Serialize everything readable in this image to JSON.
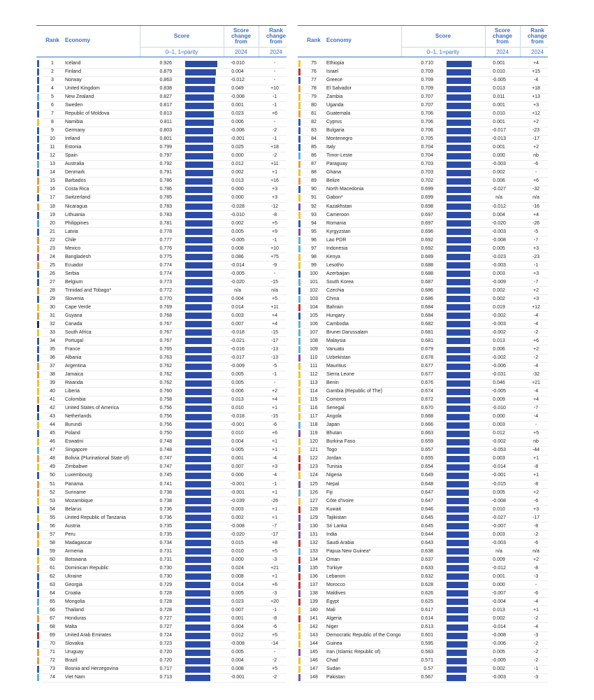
{
  "headers": {
    "rank": "Rank",
    "economy": "Economy",
    "score": "Score",
    "score_sub": "0–1, 1=parity",
    "score_change": [
      "Score",
      "change",
      "from"
    ],
    "rank_change": [
      "Rank",
      "change",
      "from"
    ],
    "year": "2024"
  },
  "bar_color": "#2c4ca8",
  "rows": [
    [
      1,
      "Iceland",
      0.926,
      "-0.010",
      "-",
      "#2f5bb7"
    ],
    [
      2,
      "Finland",
      0.879,
      "0.004",
      "-",
      "#2f5bb7"
    ],
    [
      3,
      "Norway",
      0.863,
      "-0.012",
      "-",
      "#2f5bb7"
    ],
    [
      4,
      "United Kingdom",
      0.838,
      "0.049",
      "+10",
      "#2f5bb7"
    ],
    [
      5,
      "New Zealand",
      0.827,
      "-0.008",
      "-1",
      "#5ab0e0"
    ],
    [
      6,
      "Sweden",
      0.817,
      "0.001",
      "-1",
      "#2f5bb7"
    ],
    [
      7,
      "Republic of Moldova",
      0.813,
      "0.023",
      "+6",
      "#2f5bb7"
    ],
    [
      8,
      "Namibia",
      0.811,
      "0.006",
      "-",
      "#f2c12e"
    ],
    [
      9,
      "Germany",
      0.803,
      "-0.006",
      "-2",
      "#2f5bb7"
    ],
    [
      10,
      "Ireland",
      0.801,
      "-0.001",
      "-1",
      "#2f5bb7"
    ],
    [
      11,
      "Estonia",
      0.799,
      "0.025",
      "+18",
      "#2f5bb7"
    ],
    [
      12,
      "Spain",
      0.797,
      "0.000",
      "-2",
      "#2f5bb7"
    ],
    [
      13,
      "Australia",
      0.792,
      "0.012",
      "+11",
      "#5ab0e0"
    ],
    [
      14,
      "Denmark",
      0.791,
      "0.002",
      "+1",
      "#2f5bb7"
    ],
    [
      15,
      "Barbados",
      0.786,
      "0.013",
      "+16",
      "#f09a3e"
    ],
    [
      16,
      "Costa Rica",
      0.786,
      "0.000",
      "+3",
      "#f09a3e"
    ],
    [
      17,
      "Switzerland",
      0.785,
      "0.000",
      "+3",
      "#2f5bb7"
    ],
    [
      18,
      "Nicaragua",
      0.783,
      "-0.028",
      "-12",
      "#f09a3e"
    ],
    [
      19,
      "Lithuania",
      0.783,
      "-0.010",
      "-8",
      "#2f5bb7"
    ],
    [
      20,
      "Philippines",
      0.781,
      "0.002",
      "+5",
      "#5ab0e0"
    ],
    [
      21,
      "Latvia",
      0.778,
      "0.005",
      "+9",
      "#2f5bb7"
    ],
    [
      22,
      "Chile",
      0.777,
      "-0.005",
      "-1",
      "#f09a3e"
    ],
    [
      23,
      "Mexico",
      0.776,
      "0.008",
      "+10",
      "#f09a3e"
    ],
    [
      24,
      "Bangladesh",
      0.775,
      "0.086",
      "+75",
      "#8050a8"
    ],
    [
      25,
      "Ecuador",
      0.774,
      "-0.014",
      "-9",
      "#f09a3e"
    ],
    [
      26,
      "Serbia",
      0.774,
      "-0.005",
      "-",
      "#2f5bb7"
    ],
    [
      27,
      "Belgium",
      0.773,
      "-0.020",
      "-15",
      "#2f5bb7"
    ],
    [
      28,
      "Trinidad and Tobago*",
      0.772,
      "n/a",
      "n/a",
      "#f09a3e"
    ],
    [
      29,
      "Slovenia",
      {
        "value": 0.77,
        "label": "0.770"
      },
      "0.004",
      "+5",
      "#2f5bb7"
    ],
    [
      30,
      "Cape Verde",
      0.769,
      "0.014",
      "+11",
      "#f2c12e"
    ],
    [
      31,
      "Guyana",
      0.768,
      "0.003",
      "+4",
      "#f09a3e"
    ],
    [
      32,
      "Canada",
      0.767,
      "0.007",
      "+4",
      "#1b2f6b"
    ],
    [
      33,
      "South Africa",
      0.767,
      "-0.018",
      "-15",
      "#f2c12e"
    ],
    [
      34,
      "Portugal",
      0.767,
      "-0.021",
      "-17",
      "#2f5bb7"
    ],
    [
      35,
      "France",
      0.765,
      "-0.016",
      "-13",
      "#2f5bb7"
    ],
    [
      36,
      "Albania",
      0.763,
      "-0.017",
      "-13",
      "#2f5bb7"
    ],
    [
      37,
      "Argentina",
      0.762,
      "-0.009",
      "-5",
      "#f09a3e"
    ],
    [
      38,
      "Jamaica",
      0.762,
      "0.005",
      "-1",
      "#f09a3e"
    ],
    [
      39,
      "Rwanda",
      0.762,
      "0.005",
      "-",
      "#f2c12e"
    ],
    [
      40,
      "Liberia",
      {
        "value": 0.76,
        "label": "0.760"
      },
      "0.006",
      "+2",
      "#f2c12e"
    ],
    [
      41,
      "Colombia",
      0.758,
      "0.013",
      "+4",
      "#f09a3e"
    ],
    [
      42,
      "United States of America",
      0.756,
      "0.010",
      "+1",
      "#1b2f6b"
    ],
    [
      43,
      "Netherlands",
      0.756,
      "-0.018",
      "-15",
      "#2f5bb7"
    ],
    [
      44,
      "Burundi",
      0.756,
      "-0.001",
      "-6",
      "#f2c12e"
    ],
    [
      45,
      "Poland",
      {
        "value": 0.75,
        "label": "0.750"
      },
      "0.010",
      "+6",
      "#2f5bb7"
    ],
    [
      46,
      "Eswatini",
      0.748,
      "0.004",
      "+1",
      "#f2c12e"
    ],
    [
      47,
      "Singapore",
      0.748,
      "0.005",
      "+1",
      "#5ab0e0"
    ],
    [
      48,
      "Bolivia (Plurinational State of)",
      0.747,
      "0.001",
      "-4",
      "#f09a3e"
    ],
    [
      49,
      "Zimbabwe",
      0.747,
      "0.007",
      "+3",
      "#f2c12e"
    ],
    [
      50,
      "Luxembourg",
      0.745,
      "0.000",
      "-4",
      "#2f5bb7"
    ],
    [
      51,
      "Panama",
      0.741,
      "-0.001",
      "-1",
      "#f09a3e"
    ],
    [
      52,
      "Suriname",
      0.738,
      "-0.001",
      "+1",
      "#f09a3e"
    ],
    [
      53,
      "Mozambique",
      0.738,
      "-0.039",
      "-26",
      "#f2c12e"
    ],
    [
      54,
      "Belarus",
      0.736,
      "0.003",
      "+1",
      "#2f5bb7"
    ],
    [
      55,
      "United Republic of Tanzania",
      0.736,
      "0.002",
      "+1",
      "#f2c12e"
    ],
    [
      56,
      "Austria",
      0.735,
      "-0.008",
      "-7",
      "#2f5bb7"
    ],
    [
      57,
      "Peru",
      0.735,
      "-0.020",
      "-17",
      "#f09a3e"
    ],
    [
      58,
      "Madagascar",
      0.734,
      "0.015",
      "+8",
      "#f2c12e"
    ],
    [
      59,
      "Armenia",
      0.731,
      "0.010",
      "+5",
      "#2f5bb7"
    ],
    [
      60,
      "Botswana",
      0.731,
      "0.000",
      "-3",
      "#f2c12e"
    ],
    [
      61,
      "Dominican Republic",
      {
        "value": 0.73,
        "label": "0.730"
      },
      "0.024",
      "+21",
      "#f09a3e"
    ],
    [
      62,
      "Ukraine",
      {
        "value": 0.73,
        "label": "0.730"
      },
      "0.008",
      "+1",
      "#2f5bb7"
    ],
    [
      63,
      "Georgia",
      0.729,
      "0.014",
      "+6",
      "#2f5bb7"
    ],
    [
      64,
      "Croatia",
      0.728,
      "0.005",
      "-3",
      "#2f5bb7"
    ],
    [
      65,
      "Mongolia",
      0.728,
      "0.023",
      "+20",
      "#5ab0e0"
    ],
    [
      66,
      "Thailand",
      0.728,
      "0.007",
      "-1",
      "#5ab0e0"
    ],
    [
      67,
      "Honduras",
      0.727,
      "0.001",
      "-8",
      "#f09a3e"
    ],
    [
      68,
      "Malta",
      0.727,
      "0.004",
      "-6",
      "#2f5bb7"
    ],
    [
      69,
      "United Arab Emirates",
      0.724,
      "0.012",
      "+5",
      "#c8312c"
    ],
    [
      70,
      "Slovakia",
      0.723,
      "-0.008",
      "-14",
      "#2f5bb7"
    ],
    [
      71,
      "Uruguay",
      {
        "value": 0.72,
        "label": "0.720"
      },
      "0.005",
      "-",
      "#f09a3e"
    ],
    [
      72,
      "Brazil",
      {
        "value": 0.72,
        "label": "0.720"
      },
      "0.004",
      "-2",
      "#f09a3e"
    ],
    [
      73,
      "Bosnia and Herzegovina",
      0.717,
      "0.008",
      "+5",
      "#2f5bb7"
    ],
    [
      74,
      "Viet Nam",
      0.713,
      "-0.001",
      "-2",
      "#5ab0e0"
    ],
    [
      75,
      "Ethiopia",
      {
        "value": 0.71,
        "label": "0.710"
      },
      "0.001",
      "+4",
      "#f2c12e"
    ],
    [
      76,
      "Israel",
      0.709,
      "0.010",
      "+15",
      "#c8312c"
    ],
    [
      77,
      "Greece",
      0.709,
      "-0.005",
      "-4",
      "#2f5bb7"
    ],
    [
      78,
      "El Salvador",
      0.709,
      "0.013",
      "+18",
      "#f09a3e"
    ],
    [
      79,
      "Zambia",
      0.707,
      "0.011",
      "+13",
      "#f2c12e"
    ],
    [
      80,
      "Uganda",
      0.707,
      "0.001",
      "+3",
      "#f2c12e"
    ],
    [
      81,
      "Guatemala",
      0.706,
      "0.010",
      "+12",
      "#f09a3e"
    ],
    [
      82,
      "Cyprus",
      0.706,
      "0.001",
      "+2",
      "#2f5bb7"
    ],
    [
      83,
      "Bulgaria",
      0.706,
      "-0.017",
      "-23",
      "#2f5bb7"
    ],
    [
      84,
      "Montenegro",
      0.705,
      "-0.013",
      "-17",
      "#2f5bb7"
    ],
    [
      85,
      "Italy",
      0.704,
      "0.001",
      "+2",
      "#2f5bb7"
    ],
    [
      86,
      "Timor-Leste",
      0.704,
      "0.000",
      "nb",
      "#5ab0e0"
    ],
    [
      87,
      "Paraguay",
      0.703,
      "-0.003",
      "-6",
      "#f09a3e"
    ],
    [
      88,
      "Ghana",
      0.703,
      "0.002",
      "-",
      "#f2c12e"
    ],
    [
      89,
      "Belize",
      0.702,
      "0.006",
      "+6",
      "#f09a3e"
    ],
    [
      90,
      "North Macedonia",
      0.699,
      "-0.027",
      "-32",
      "#2f5bb7"
    ],
    [
      91,
      "Gabon*",
      0.699,
      "n/a",
      "n/a",
      "#f2c12e"
    ],
    [
      92,
      "Kazakhstan",
      0.698,
      "-0.012",
      "-16",
      "#8050a8"
    ],
    [
      93,
      "Cameroon",
      0.697,
      "0.004",
      "+4",
      "#f2c12e"
    ],
    [
      94,
      "Romania",
      0.697,
      "-0.020",
      "-26",
      "#2f5bb7"
    ],
    [
      95,
      "Kyrgyzstan",
      0.696,
      "-0.003",
      "-5",
      "#8050a8"
    ],
    [
      96,
      "Lao PDR",
      0.692,
      "-0.008",
      "-7",
      "#5ab0e0"
    ],
    [
      97,
      "Indonesia",
      0.692,
      "0.005",
      "+3",
      "#5ab0e0"
    ],
    [
      98,
      "Kenya",
      0.689,
      "-0.023",
      "-23",
      "#f2c12e"
    ],
    [
      99,
      "Lesotho",
      0.688,
      "-0.003",
      "-1",
      "#f2c12e"
    ],
    [
      100,
      "Azerbaijan",
      0.688,
      "0.003",
      "+3",
      "#2f5bb7"
    ],
    [
      101,
      "South Korea",
      0.687,
      "-0.009",
      "-7",
      "#5ab0e0"
    ],
    [
      102,
      "Czechia",
      0.686,
      "0.002",
      "+2",
      "#2f5bb7"
    ],
    [
      103,
      "China",
      0.686,
      "0.002",
      "+3",
      "#5ab0e0"
    ],
    [
      104,
      "Bahrain",
      0.684,
      "0.019",
      "+12",
      "#c8312c"
    ],
    [
      105,
      "Hungary",
      0.684,
      "-0.002",
      "-4",
      "#2f5bb7"
    ],
    [
      106,
      "Cambodia",
      0.682,
      "-0.003",
      "-4",
      "#5ab0e0"
    ],
    [
      107,
      "Brunei Darussalam",
      0.681,
      "-0.002",
      "-2",
      "#5ab0e0"
    ],
    [
      108,
      "Malaysia",
      0.681,
      "0.013",
      "+6",
      "#5ab0e0"
    ],
    [
      109,
      "Vanuatu",
      0.679,
      "0.006",
      "+2",
      "#5ab0e0"
    ],
    [
      110,
      "Uzbekistan",
      0.678,
      "-0.002",
      "-2",
      "#8050a8"
    ],
    [
      111,
      "Mauritius",
      0.677,
      "-0.006",
      "-4",
      "#f2c12e"
    ],
    [
      112,
      "Sierra Leone",
      0.677,
      "-0.031",
      "-32",
      "#f2c12e"
    ],
    [
      113,
      "Benin",
      0.676,
      "0.046",
      "+21",
      "#f2c12e"
    ],
    [
      114,
      "Gambia (Republic of The)",
      0.674,
      "-0.005",
      "-4",
      "#f2c12e"
    ],
    [
      115,
      "Comoros",
      0.672,
      "0.009",
      "+4",
      "#f2c12e"
    ],
    [
      116,
      "Senegal",
      {
        "value": 0.67,
        "label": "0.670"
      },
      "-0.010",
      "-7",
      "#f2c12e"
    ],
    [
      117,
      "Angola",
      0.668,
      "0.000",
      "-4",
      "#f2c12e"
    ],
    [
      118,
      "Japan",
      0.666,
      "0.003",
      "-",
      "#5ab0e0"
    ],
    [
      119,
      "Bhutan",
      0.663,
      "0.012",
      "+5",
      "#8050a8"
    ],
    [
      120,
      "Burkina Faso",
      0.659,
      "-0.002",
      "nb",
      "#f2c12e"
    ],
    [
      121,
      "Togo",
      0.657,
      "-0.053",
      "-44",
      "#f2c12e"
    ],
    [
      122,
      "Jordan",
      0.655,
      "0.003",
      "+1",
      "#c8312c"
    ],
    [
      123,
      "Tunisia",
      0.654,
      "-0.014",
      "-8",
      "#c8312c"
    ],
    [
      124,
      "Nigeria",
      0.649,
      "-0.001",
      "+1",
      "#f2c12e"
    ],
    [
      125,
      "Nepal",
      0.648,
      "-0.015",
      "-8",
      "#8050a8"
    ],
    [
      126,
      "Fiji",
      0.647,
      "0.005",
      "+2",
      "#5ab0e0"
    ],
    [
      127,
      "Côte d'Ivoire",
      0.647,
      "-0.008",
      "-6",
      "#f2c12e"
    ],
    [
      128,
      "Kuwait",
      0.646,
      "0.010",
      "+3",
      "#c8312c"
    ],
    [
      129,
      "Tajikistan",
      0.645,
      "-0.027",
      "-17",
      "#8050a8"
    ],
    [
      130,
      "Sri Lanka",
      0.645,
      "-0.007",
      "-8",
      "#8050a8"
    ],
    [
      131,
      "India",
      0.644,
      "0.003",
      "-2",
      "#8050a8"
    ],
    [
      132,
      "Saudi Arabia",
      0.643,
      "-0.003",
      "-6",
      "#c8312c"
    ],
    [
      133,
      "Papua New Guinea*",
      0.638,
      "n/a",
      "n/a",
      "#5ab0e0"
    ],
    [
      134,
      "Oman",
      0.637,
      "0.009",
      "+2",
      "#c8312c"
    ],
    [
      135,
      "Türkiye",
      0.633,
      "-0.012",
      "-8",
      "#2f5bb7"
    ],
    [
      136,
      "Lebanon",
      0.632,
      "0.001",
      "-3",
      "#c8312c"
    ],
    [
      137,
      "Morocco",
      0.628,
      "0.000",
      "-",
      "#c8312c"
    ],
    [
      138,
      "Maldives",
      0.626,
      "-0.007",
      "-6",
      "#8050a8"
    ],
    [
      139,
      "Egypt",
      0.625,
      "-0.004",
      "-4",
      "#c8312c"
    ],
    [
      140,
      "Mali",
      0.617,
      "0.013",
      "+1",
      "#f2c12e"
    ],
    [
      141,
      "Algeria",
      0.614,
      "0.002",
      "-2",
      "#c8312c"
    ],
    [
      142,
      "Niger",
      0.613,
      "-0.014",
      "-4",
      "#f2c12e"
    ],
    [
      143,
      "Democratic Republic of the Congo",
      0.601,
      "-0.008",
      "-3",
      "#f2c12e"
    ],
    [
      144,
      "Guinea",
      0.595,
      "-0.006",
      "-2",
      "#f2c12e"
    ],
    [
      145,
      "Iran (Islamic Republic of)",
      0.583,
      "0.005",
      "-2",
      "#8050a8"
    ],
    [
      146,
      "Chad",
      0.571,
      "-0.005",
      "-2",
      "#f2c12e"
    ],
    [
      147,
      "Sudan",
      0.57,
      "0.002",
      "-1",
      "#f2c12e"
    ],
    [
      148,
      "Pakistan",
      0.567,
      "-0.003",
      "-3",
      "#8050a8"
    ]
  ]
}
